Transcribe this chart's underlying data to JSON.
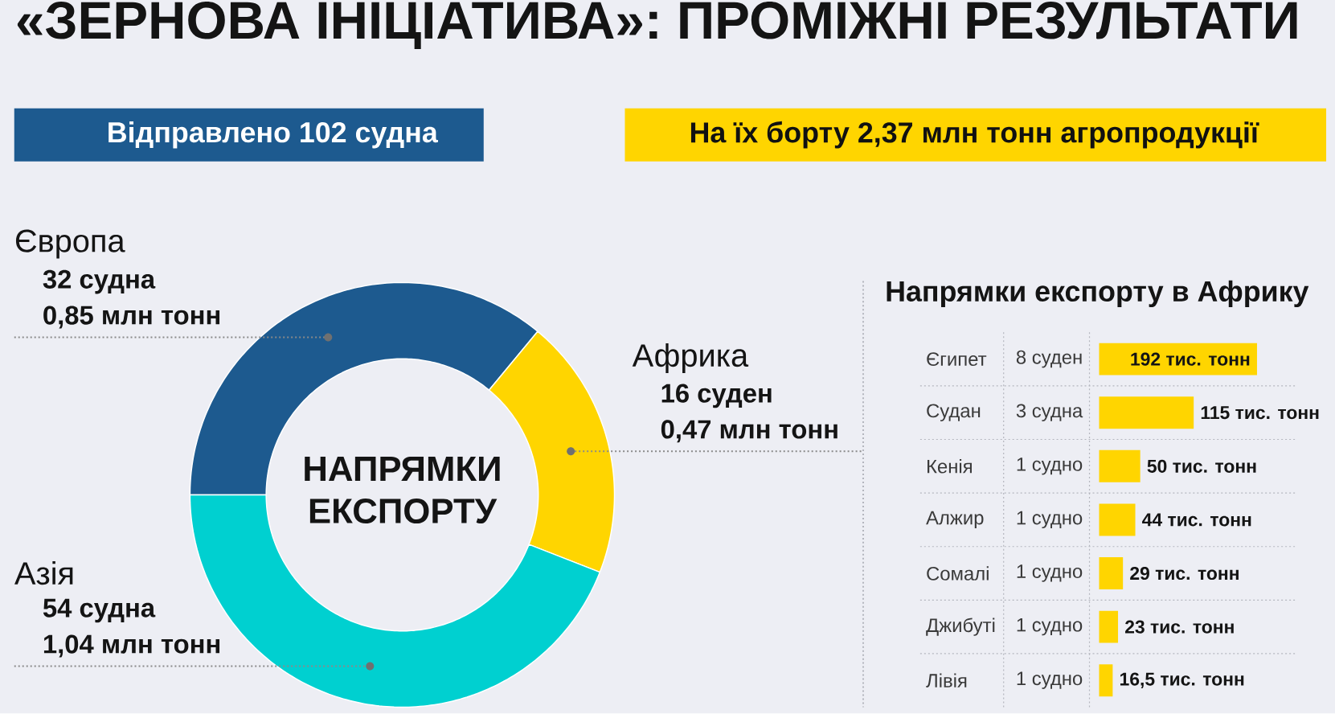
{
  "chart_data": [
    {
      "type": "other",
      "title": "«ЗЕРНОВА ІНІЦІАТИВА»: ПРОМІЖНІ РЕЗУЛЬТАТИ",
      "annotations": [
        "Відправлено 102 судна",
        "На їх борту 2,37 млн тонн агропродукції"
      ]
    },
    {
      "type": "donut",
      "title": "НАПРЯМКИ ЕКСПОРТУ",
      "categories": [
        "Європа",
        "Африка",
        "Азія"
      ],
      "values": [
        0.85,
        0.47,
        1.04
      ],
      "colors": [
        "#1d5a8f",
        "#ffd500",
        "#00d0d0"
      ],
      "value_labels": [
        "0,85 млн тонн",
        "0,47 млн тонн",
        "1,04 млн тонн"
      ],
      "annotations": [
        "32 судна",
        "16 суден",
        "54 судна"
      ]
    },
    {
      "type": "bar",
      "orientation": "horizontal",
      "title": "Напрямки експорту в Африку",
      "categories": [
        "Єгипет",
        "Судан",
        "Кенія",
        "Алжир",
        "Сомалі",
        "Джибуті",
        "Лівія"
      ],
      "values": [
        192,
        115,
        50,
        44,
        29,
        23,
        16.5
      ],
      "color": "#ffd500",
      "value_labels": [
        "192 тис. тонн",
        "115 тис. тонн",
        "50 тис. тонн",
        "44 тис. тонн",
        "29 тис. тонн",
        "23 тис. тонн",
        "16,5 тис. тонн"
      ],
      "annotations": [
        "8 суден",
        "3 судна",
        "1 судно",
        "1 судно",
        "1 судно",
        "1 судно",
        "1 судно"
      ]
    }
  ]
}
